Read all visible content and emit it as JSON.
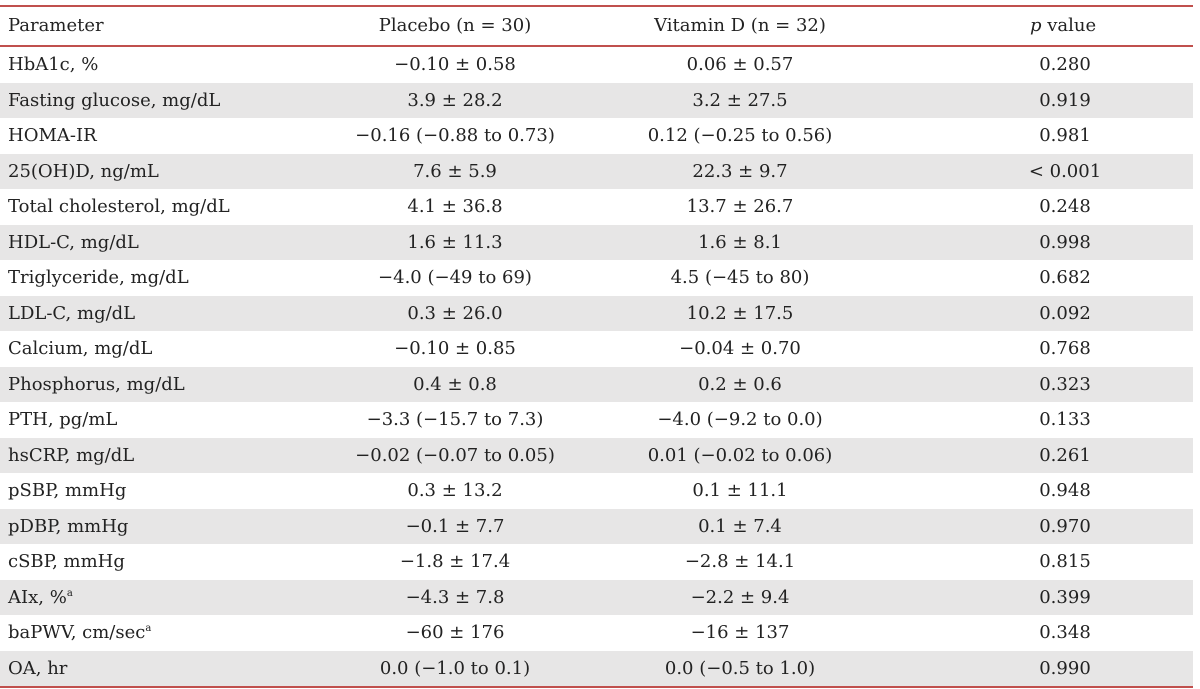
{
  "table": {
    "headers": {
      "parameter": "Parameter",
      "placebo": "Placebo (n = 30)",
      "vitamin_d": "Vitamin D (n = 32)",
      "p_italic": "p",
      "p_rest": " value"
    },
    "rows": [
      {
        "parameter": "HbA1c, %",
        "sup": "",
        "placebo": "−0.10 ± 0.58",
        "vitamin_d": "0.06 ± 0.57",
        "p": "0.280"
      },
      {
        "parameter": "Fasting glucose, mg/dL",
        "sup": "",
        "placebo": "3.9 ± 28.2",
        "vitamin_d": "3.2 ± 27.5",
        "p": "0.919"
      },
      {
        "parameter": "HOMA-IR",
        "sup": "",
        "placebo": "−0.16 (−0.88 to 0.73)",
        "vitamin_d": "0.12 (−0.25 to 0.56)",
        "p": "0.981"
      },
      {
        "parameter": "25(OH)D, ng/mL",
        "sup": "",
        "placebo": "7.6 ± 5.9",
        "vitamin_d": "22.3 ± 9.7",
        "p": "< 0.001"
      },
      {
        "parameter": "Total cholesterol, mg/dL",
        "sup": "",
        "placebo": "4.1 ± 36.8",
        "vitamin_d": "13.7 ± 26.7",
        "p": "0.248"
      },
      {
        "parameter": "HDL-C, mg/dL",
        "sup": "",
        "placebo": "1.6 ± 11.3",
        "vitamin_d": "1.6 ± 8.1",
        "p": "0.998"
      },
      {
        "parameter": "Triglyceride, mg/dL",
        "sup": "",
        "placebo": "−4.0 (−49 to 69)",
        "vitamin_d": "4.5 (−45 to 80)",
        "p": "0.682"
      },
      {
        "parameter": "LDL-C, mg/dL",
        "sup": "",
        "placebo": "0.3 ± 26.0",
        "vitamin_d": "10.2 ± 17.5",
        "p": "0.092"
      },
      {
        "parameter": "Calcium, mg/dL",
        "sup": "",
        "placebo": "−0.10 ± 0.85",
        "vitamin_d": "−0.04 ± 0.70",
        "p": "0.768"
      },
      {
        "parameter": "Phosphorus, mg/dL",
        "sup": "",
        "placebo": "0.4 ± 0.8",
        "vitamin_d": "0.2 ± 0.6",
        "p": "0.323"
      },
      {
        "parameter": "PTH, pg/mL",
        "sup": "",
        "placebo": "−3.3 (−15.7 to 7.3)",
        "vitamin_d": "−4.0 (−9.2 to 0.0)",
        "p": "0.133"
      },
      {
        "parameter": "hsCRP, mg/dL",
        "sup": "",
        "placebo": "−0.02 (−0.07 to 0.05)",
        "vitamin_d": "0.01 (−0.02 to 0.06)",
        "p": "0.261"
      },
      {
        "parameter": "pSBP, mmHg",
        "sup": "",
        "placebo": "0.3 ± 13.2",
        "vitamin_d": "0.1 ± 11.1",
        "p": "0.948"
      },
      {
        "parameter": "pDBP, mmHg",
        "sup": "",
        "placebo": "−0.1 ± 7.7",
        "vitamin_d": "0.1 ± 7.4",
        "p": "0.970"
      },
      {
        "parameter": "cSBP, mmHg",
        "sup": "",
        "placebo": "−1.8 ± 17.4",
        "vitamin_d": "−2.8 ± 14.1",
        "p": "0.815"
      },
      {
        "parameter": "AIx, %",
        "sup": "a",
        "placebo": "−4.3 ± 7.8",
        "vitamin_d": "−2.2 ± 9.4",
        "p": "0.399"
      },
      {
        "parameter": "baPWV, cm/sec",
        "sup": "a",
        "placebo": "−60 ± 176",
        "vitamin_d": "−16 ± 137",
        "p": "0.348"
      },
      {
        "parameter": "OA, hr",
        "sup": "",
        "placebo": "0.0 (−1.0 to 0.1)",
        "vitamin_d": "0.0 (−0.5 to 1.0)",
        "p": "0.990"
      }
    ],
    "rule_color": "#c0504d",
    "shade_color": "#e7e6e6"
  }
}
